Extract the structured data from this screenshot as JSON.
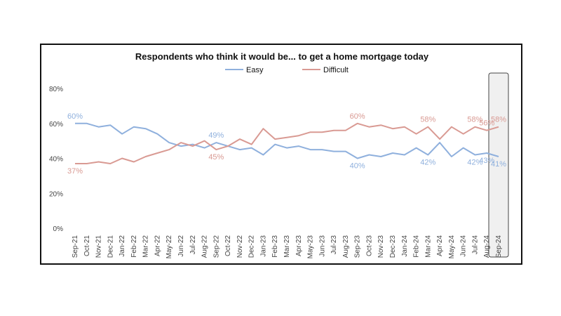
{
  "chart_data": {
    "type": "line",
    "title": "Respondents who think it would be... to get a home mortgage today",
    "xlabel": "",
    "ylabel": "",
    "ylim": [
      0,
      80
    ],
    "yticks": [
      "0%",
      "20%",
      "40%",
      "60%",
      "80%"
    ],
    "grid": false,
    "legend_position": "top",
    "colors": {
      "Easy": "#8fb0dd",
      "Difficult": "#d99a93",
      "highlight_fill": "#f0f0f0",
      "highlight_stroke": "#444444"
    },
    "categories": [
      "Sep-21",
      "Oct-21",
      "Nov-21",
      "Dec-21",
      "Jan-22",
      "Feb-22",
      "Mar-22",
      "Apr-22",
      "May-22",
      "Jun-22",
      "Jul-22",
      "Aug-22",
      "Sep-22",
      "Oct-22",
      "Nov-22",
      "Dec-22",
      "Jan-23",
      "Feb-23",
      "Mar-23",
      "Apr-23",
      "May-23",
      "Jun-23",
      "Jul-23",
      "Aug-23",
      "Sep-23",
      "Oct-23",
      "Nov-23",
      "Dec-23",
      "Jan-24",
      "Feb-24",
      "Mar-24",
      "Apr-24",
      "May-24",
      "Jun-24",
      "Jul-24",
      "Aug-24",
      "Sep-24"
    ],
    "series": [
      {
        "name": "Easy",
        "values": [
          60,
          60,
          58,
          59,
          54,
          58,
          57,
          54,
          49,
          47,
          48,
          46,
          49,
          47,
          45,
          46,
          42,
          48,
          46,
          47,
          45,
          45,
          44,
          44,
          40,
          42,
          41,
          43,
          42,
          46,
          42,
          49,
          41,
          46,
          42,
          43,
          41
        ]
      },
      {
        "name": "Difficult",
        "values": [
          37,
          37,
          38,
          37,
          40,
          38,
          41,
          43,
          45,
          49,
          47,
          50,
          45,
          47,
          51,
          48,
          57,
          51,
          52,
          53,
          55,
          55,
          56,
          56,
          60,
          58,
          59,
          57,
          58,
          54,
          58,
          51,
          58,
          54,
          58,
          56,
          58
        ]
      }
    ],
    "annotations": [
      {
        "series": "Easy",
        "index": 0,
        "text": "60%"
      },
      {
        "series": "Difficult",
        "index": 0,
        "text": "37%"
      },
      {
        "series": "Easy",
        "index": 12,
        "text": "49%"
      },
      {
        "series": "Difficult",
        "index": 12,
        "text": "45%"
      },
      {
        "series": "Difficult",
        "index": 24,
        "text": "60%"
      },
      {
        "series": "Easy",
        "index": 24,
        "text": "40%"
      },
      {
        "series": "Difficult",
        "index": 30,
        "text": "58%"
      },
      {
        "series": "Easy",
        "index": 30,
        "text": "42%"
      },
      {
        "series": "Difficult",
        "index": 34,
        "text": "58%"
      },
      {
        "series": "Easy",
        "index": 34,
        "text": "42%"
      },
      {
        "series": "Difficult",
        "index": 35,
        "text": "56%"
      },
      {
        "series": "Easy",
        "index": 35,
        "text": "43%"
      },
      {
        "series": "Difficult",
        "index": 36,
        "text": "58%"
      },
      {
        "series": "Easy",
        "index": 36,
        "text": "41%"
      }
    ],
    "highlight_category": "Sep-24"
  }
}
